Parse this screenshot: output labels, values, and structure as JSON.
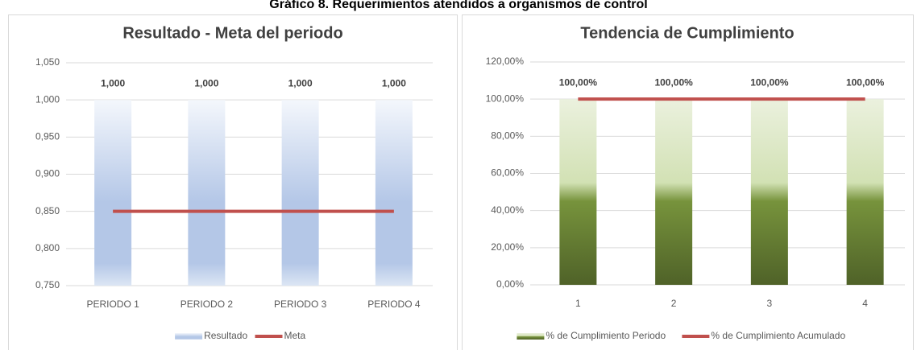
{
  "header": "Gráfico 8. Requerimientos atendidos a organismos de control",
  "chart_data": [
    {
      "type": "combo",
      "title": "Resultado  - Meta del periodo",
      "categories": [
        "PERIODO 1",
        "PERIODO 2",
        "PERIODO 3",
        "PERIODO 4"
      ],
      "series": [
        {
          "name": "Resultado",
          "type": "bar",
          "color": "#b4c7e7",
          "values": [
            1.0,
            1.0,
            1.0,
            1.0
          ],
          "value_labels": [
            "1,000",
            "1,000",
            "1,000",
            "1,000"
          ]
        },
        {
          "name": "Meta",
          "type": "line",
          "color": "#c0504d",
          "values": [
            0.85,
            0.85,
            0.85,
            0.85
          ]
        }
      ],
      "ylim": [
        0.75,
        1.05
      ],
      "yticks": [
        {
          "value": 0.75,
          "label": "0,750"
        },
        {
          "value": 0.8,
          "label": "0,800"
        },
        {
          "value": 0.85,
          "label": "0,850"
        },
        {
          "value": 0.9,
          "label": "0,900"
        },
        {
          "value": 0.95,
          "label": "0,950"
        },
        {
          "value": 1.0,
          "label": "1,000"
        },
        {
          "value": 1.05,
          "label": "1,050"
        }
      ],
      "grid": true,
      "legend": "bottom"
    },
    {
      "type": "combo",
      "title": "Tendencia de Cumplimiento",
      "categories": [
        "1",
        "2",
        "3",
        "4"
      ],
      "series": [
        {
          "name": "% de Cumplimiento Periodo",
          "type": "bar",
          "color": "#4f6228",
          "values": [
            100,
            100,
            100,
            100
          ],
          "value_labels": [
            "100,00%",
            "100,00%",
            "100,00%",
            "100,00%"
          ]
        },
        {
          "name": "% de Cumplimiento Acumulado",
          "type": "line",
          "color": "#c0504d",
          "values": [
            100,
            100,
            100,
            100
          ]
        }
      ],
      "ylim": [
        0,
        120
      ],
      "yticks": [
        {
          "value": 0,
          "label": "0,00%"
        },
        {
          "value": 20,
          "label": "20,00%"
        },
        {
          "value": 40,
          "label": "40,00%"
        },
        {
          "value": 60,
          "label": "60,00%"
        },
        {
          "value": 80,
          "label": "80,00%"
        },
        {
          "value": 100,
          "label": "100,00%"
        },
        {
          "value": 120,
          "label": "120,00%"
        }
      ],
      "grid": true,
      "legend": "bottom"
    }
  ]
}
